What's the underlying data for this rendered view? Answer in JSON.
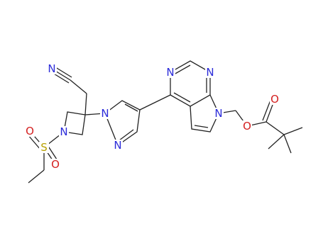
{
  "atoms": [
    "N",
    "N",
    "S",
    "O",
    "O",
    "N",
    "N",
    "N",
    "N",
    "N",
    "O",
    "O"
  ]
}
